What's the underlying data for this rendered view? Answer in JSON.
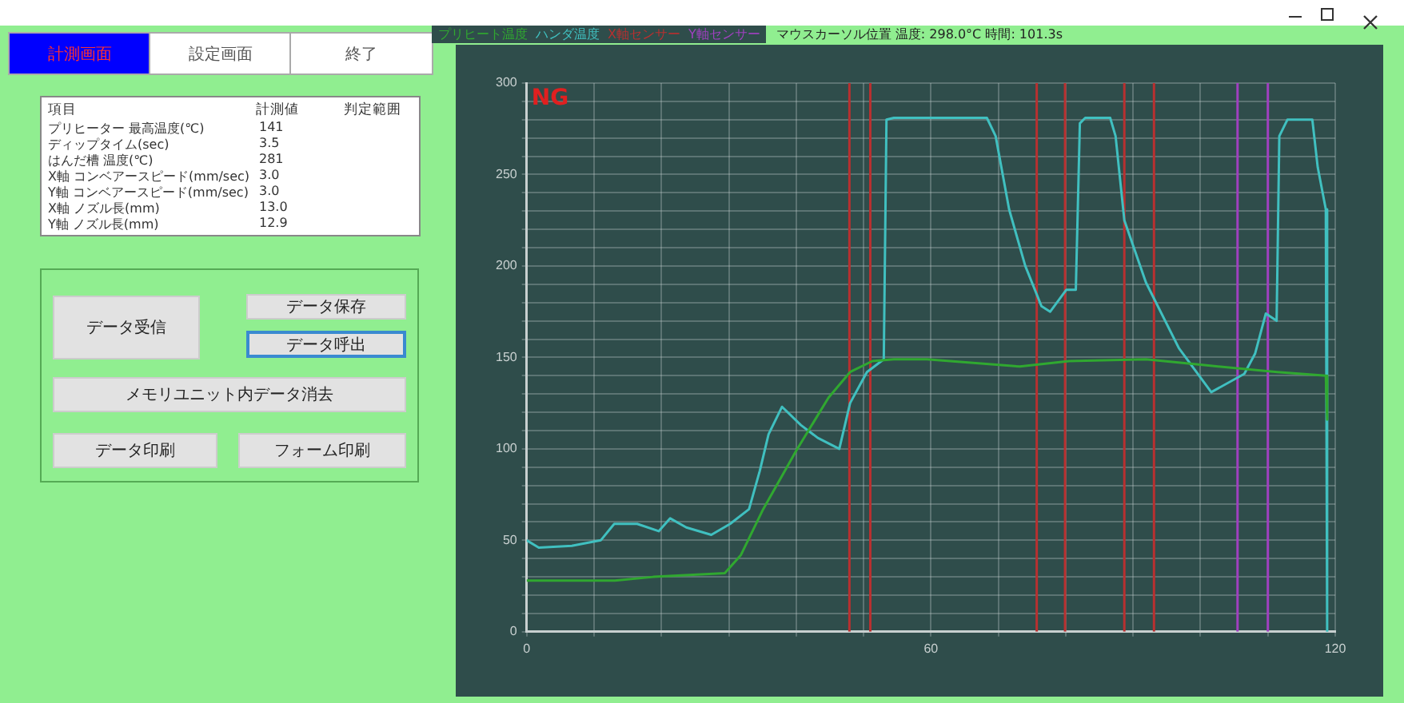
{
  "chart_data": [
    {
      "type": "other",
      "annotations": [
        "計測画面",
        "設定画面",
        "終了",
        "項目",
        "計測値",
        "判定範囲",
        "プリヒーター 最高温度(℃)",
        "141",
        "ディップタイム(sec)",
        "3.5",
        "はんだ槽 温度(℃)",
        "281",
        "X軸 コンベアースピード(mm/sec)",
        "3.0",
        "Y軸 コンベアースピード(mm/sec)",
        "3.0",
        "X軸 ノズル長(mm)",
        "13.0",
        "Y軸 ノズル長(mm)",
        "12.9",
        "データ受信",
        "データ保存",
        "データ呼出",
        "メモリユニット内データ消去",
        "データ印刷",
        "フォーム印刷"
      ]
    },
    {
      "type": "line",
      "xlim": [
        0,
        120
      ],
      "ylim": [
        0,
        300
      ],
      "xticks": [
        0,
        {
          "value": 10,
          "label": null
        },
        {
          "value": 20,
          "label": null
        },
        {
          "value": 30,
          "label": null
        },
        {
          "value": 40,
          "label": null
        },
        {
          "value": 50,
          "label": null
        },
        60,
        {
          "value": 70,
          "label": null
        },
        {
          "value": 80,
          "label": null
        },
        {
          "value": 90,
          "label": null
        },
        {
          "value": 100,
          "label": null
        },
        {
          "value": 110,
          "label": null
        },
        120
      ],
      "yticks": [
        0,
        {
          "value": 10,
          "label": null
        },
        {
          "value": 20,
          "label": null
        },
        {
          "value": 30,
          "label": null
        },
        {
          "value": 40,
          "label": null
        },
        50,
        {
          "value": 60,
          "label": null
        },
        {
          "value": 70,
          "label": null
        },
        {
          "value": 80,
          "label": null
        },
        {
          "value": 90,
          "label": null
        },
        100,
        {
          "value": 110,
          "label": null
        },
        {
          "value": 120,
          "label": null
        },
        {
          "value": 130,
          "label": null
        },
        {
          "value": 140,
          "label": null
        },
        150,
        {
          "value": 160,
          "label": null
        },
        {
          "value": 170,
          "label": null
        },
        {
          "value": 180,
          "label": null
        },
        {
          "value": 190,
          "label": null
        },
        200,
        {
          "value": 210,
          "label": null
        },
        {
          "value": 220,
          "label": null
        },
        {
          "value": 230,
          "label": null
        },
        {
          "value": 240,
          "label": null
        },
        250,
        {
          "value": 260,
          "label": null
        },
        {
          "value": 270,
          "label": null
        },
        {
          "value": 280,
          "label": null
        },
        {
          "value": 290,
          "label": null
        },
        300
      ],
      "grid": true,
      "legend": "top left",
      "marker": "none",
      "annotations": [
        "NG",
        "マウスカーソル位置 温度: 298.0°C 時間: 101.3s"
      ],
      "series": [
        {
          "name": "プリヒート温度",
          "color": "#30a830",
          "x": [
            0,
            13.1,
            18.8,
            29.4,
            31.8,
            35.1,
            40,
            44.8,
            48,
            51.3,
            54.5,
            59.4,
            73.2,
            80.5,
            91.9,
            100,
            111.4,
            118.6,
            118.8
          ],
          "values": [
            28,
            28,
            30,
            32,
            42,
            67,
            99,
            128,
            142,
            148,
            149,
            149,
            145,
            148,
            149,
            146,
            142,
            140,
            116
          ]
        },
        {
          "name": "ハンダ温度",
          "color": "#40c0c0",
          "x": [
            0,
            1.8,
            6.7,
            11,
            13,
            16.4,
            19.6,
            21.3,
            23.7,
            27.4,
            30.2,
            33,
            34.6,
            35.9,
            37.9,
            40.7,
            43.2,
            46.4,
            48,
            50.5,
            53,
            53.4,
            54.5,
            68.3,
            69.6,
            71.6,
            74,
            76.4,
            77.7,
            80.1,
            81.5,
            82.1,
            82.9,
            86.6,
            87.4,
            88.7,
            91.9,
            96.8,
            101.6,
            106.5,
            108.1,
            109.7,
            111.3,
            111.7,
            112.9,
            116.6,
            117.4,
            118.6,
            118.8
          ],
          "values": [
            50,
            46,
            47,
            50,
            59,
            59,
            55,
            62,
            57,
            53,
            59,
            67,
            88,
            108,
            123,
            113,
            106,
            100,
            125,
            142,
            149,
            280,
            281,
            281,
            271,
            231,
            200,
            178,
            175,
            187,
            187,
            278,
            281,
            281,
            271,
            225,
            191,
            155,
            131,
            141,
            152,
            174,
            170,
            271,
            280,
            280,
            254,
            231,
            0
          ]
        },
        {
          "name": "X軸センサー",
          "color": "#b83030",
          "x": [
            47.9,
            47.9,
            49,
            51,
            51,
            63,
            75.7,
            75.7,
            78,
            79.9,
            79.9,
            84,
            88.7,
            88.7,
            91,
            93.1,
            93.1
          ],
          "values": [
            0,
            300,
            null,
            0,
            300,
            null,
            0,
            300,
            null,
            0,
            300,
            null,
            0,
            300,
            null,
            0,
            300
          ]
        },
        {
          "name": "Y軸センサー",
          "color": "#a040c0",
          "x": [
            105.5,
            105.5,
            108,
            110,
            110
          ],
          "values": [
            0,
            300,
            null,
            0,
            300
          ]
        }
      ]
    }
  ]
}
